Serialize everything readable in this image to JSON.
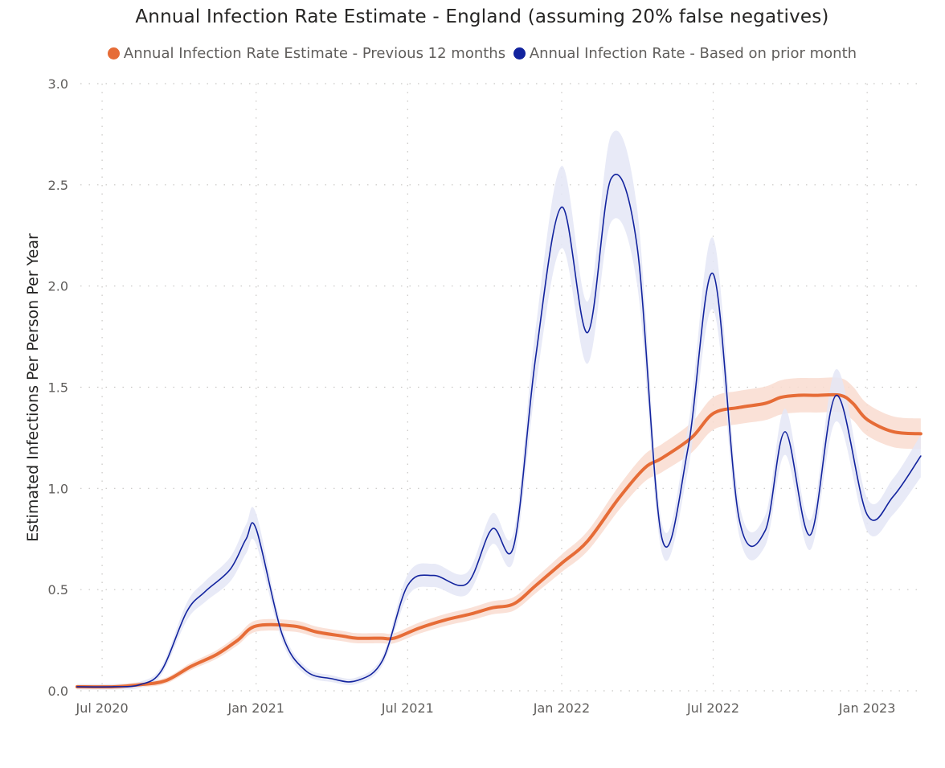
{
  "chart_data": {
    "type": "line",
    "title": "Annual Infection Rate Estimate - England (assuming 20% false negatives)",
    "xlabel": "",
    "ylabel": "Estimated Infections Per Person Per Year",
    "ylim": [
      0,
      3.0
    ],
    "y_ticks": [
      "0.0",
      "0.5",
      "1.0",
      "1.5",
      "2.0",
      "2.5",
      "3.0"
    ],
    "x_ticks": [
      {
        "label": "Jul 2020",
        "date": "2020-07-01"
      },
      {
        "label": "Jan 2021",
        "date": "2021-01-01"
      },
      {
        "label": "Jul 2021",
        "date": "2021-07-01"
      },
      {
        "label": "Jan 2022",
        "date": "2022-01-01"
      },
      {
        "label": "Jul 2022",
        "date": "2022-07-01"
      },
      {
        "label": "Jan 2023",
        "date": "2023-01-01"
      }
    ],
    "xlim": [
      "2020-06-05",
      "2023-03-10"
    ],
    "grid": true,
    "legend_position": "top-center",
    "series": [
      {
        "name": "Annual Infection Rate Estimate - Previous 12 months",
        "color": "#E66C37",
        "band_color": "#F9DCD0",
        "points": [
          [
            "2020-06-01",
            0.02
          ],
          [
            "2020-07-15",
            0.02
          ],
          [
            "2020-08-15",
            0.03
          ],
          [
            "2020-09-15",
            0.05
          ],
          [
            "2020-10-15",
            0.12
          ],
          [
            "2020-11-15",
            0.18
          ],
          [
            "2020-12-10",
            0.25
          ],
          [
            "2021-01-01",
            0.32
          ],
          [
            "2021-02-15",
            0.32
          ],
          [
            "2021-03-15",
            0.29
          ],
          [
            "2021-04-15",
            0.27
          ],
          [
            "2021-05-01",
            0.26
          ],
          [
            "2021-05-30",
            0.26
          ],
          [
            "2021-06-15",
            0.26
          ],
          [
            "2021-07-15",
            0.31
          ],
          [
            "2021-08-15",
            0.35
          ],
          [
            "2021-09-15",
            0.38
          ],
          [
            "2021-10-10",
            0.41
          ],
          [
            "2021-11-05",
            0.43
          ],
          [
            "2021-12-01",
            0.52
          ],
          [
            "2022-01-01",
            0.63
          ],
          [
            "2022-02-01",
            0.74
          ],
          [
            "2022-03-10",
            0.95
          ],
          [
            "2022-04-10",
            1.1
          ],
          [
            "2022-05-01",
            1.15
          ],
          [
            "2022-06-05",
            1.25
          ],
          [
            "2022-07-01",
            1.37
          ],
          [
            "2022-08-01",
            1.4
          ],
          [
            "2022-09-01",
            1.42
          ],
          [
            "2022-09-20",
            1.45
          ],
          [
            "2022-10-10",
            1.46
          ],
          [
            "2022-11-01",
            1.46
          ],
          [
            "2022-11-30",
            1.46
          ],
          [
            "2022-12-15",
            1.42
          ],
          [
            "2023-01-01",
            1.34
          ],
          [
            "2023-02-01",
            1.28
          ],
          [
            "2023-03-06",
            1.27
          ]
        ],
        "band_width": 0.05
      },
      {
        "name": "Annual Infection Rate - Based on prior month",
        "color": "#12239E",
        "band_color": "#E4E6F6",
        "points": [
          [
            "2020-06-01",
            0.02
          ],
          [
            "2020-07-15",
            0.02
          ],
          [
            "2020-08-15",
            0.03
          ],
          [
            "2020-09-10",
            0.1
          ],
          [
            "2020-10-10",
            0.39
          ],
          [
            "2020-11-01",
            0.49
          ],
          [
            "2020-12-01",
            0.6
          ],
          [
            "2020-12-20",
            0.75
          ],
          [
            "2021-01-01",
            0.8
          ],
          [
            "2021-02-01",
            0.28
          ],
          [
            "2021-03-01",
            0.1
          ],
          [
            "2021-04-01",
            0.06
          ],
          [
            "2021-05-01",
            0.05
          ],
          [
            "2021-06-01",
            0.15
          ],
          [
            "2021-07-01",
            0.52
          ],
          [
            "2021-08-01",
            0.57
          ],
          [
            "2021-09-10",
            0.53
          ],
          [
            "2021-10-10",
            0.8
          ],
          [
            "2021-11-05",
            0.72
          ],
          [
            "2021-12-01",
            1.65
          ],
          [
            "2022-01-01",
            2.39
          ],
          [
            "2022-02-01",
            1.77
          ],
          [
            "2022-03-01",
            2.53
          ],
          [
            "2022-04-01",
            2.2
          ],
          [
            "2022-05-01",
            0.75
          ],
          [
            "2022-06-01",
            1.2
          ],
          [
            "2022-07-01",
            2.06
          ],
          [
            "2022-08-01",
            0.85
          ],
          [
            "2022-09-01",
            0.79
          ],
          [
            "2022-09-25",
            1.28
          ],
          [
            "2022-10-25",
            0.77
          ],
          [
            "2022-11-25",
            1.46
          ],
          [
            "2023-01-01",
            0.87
          ],
          [
            "2023-02-01",
            0.96
          ],
          [
            "2023-03-06",
            1.16
          ]
        ],
        "band_width": 0.08
      }
    ]
  }
}
